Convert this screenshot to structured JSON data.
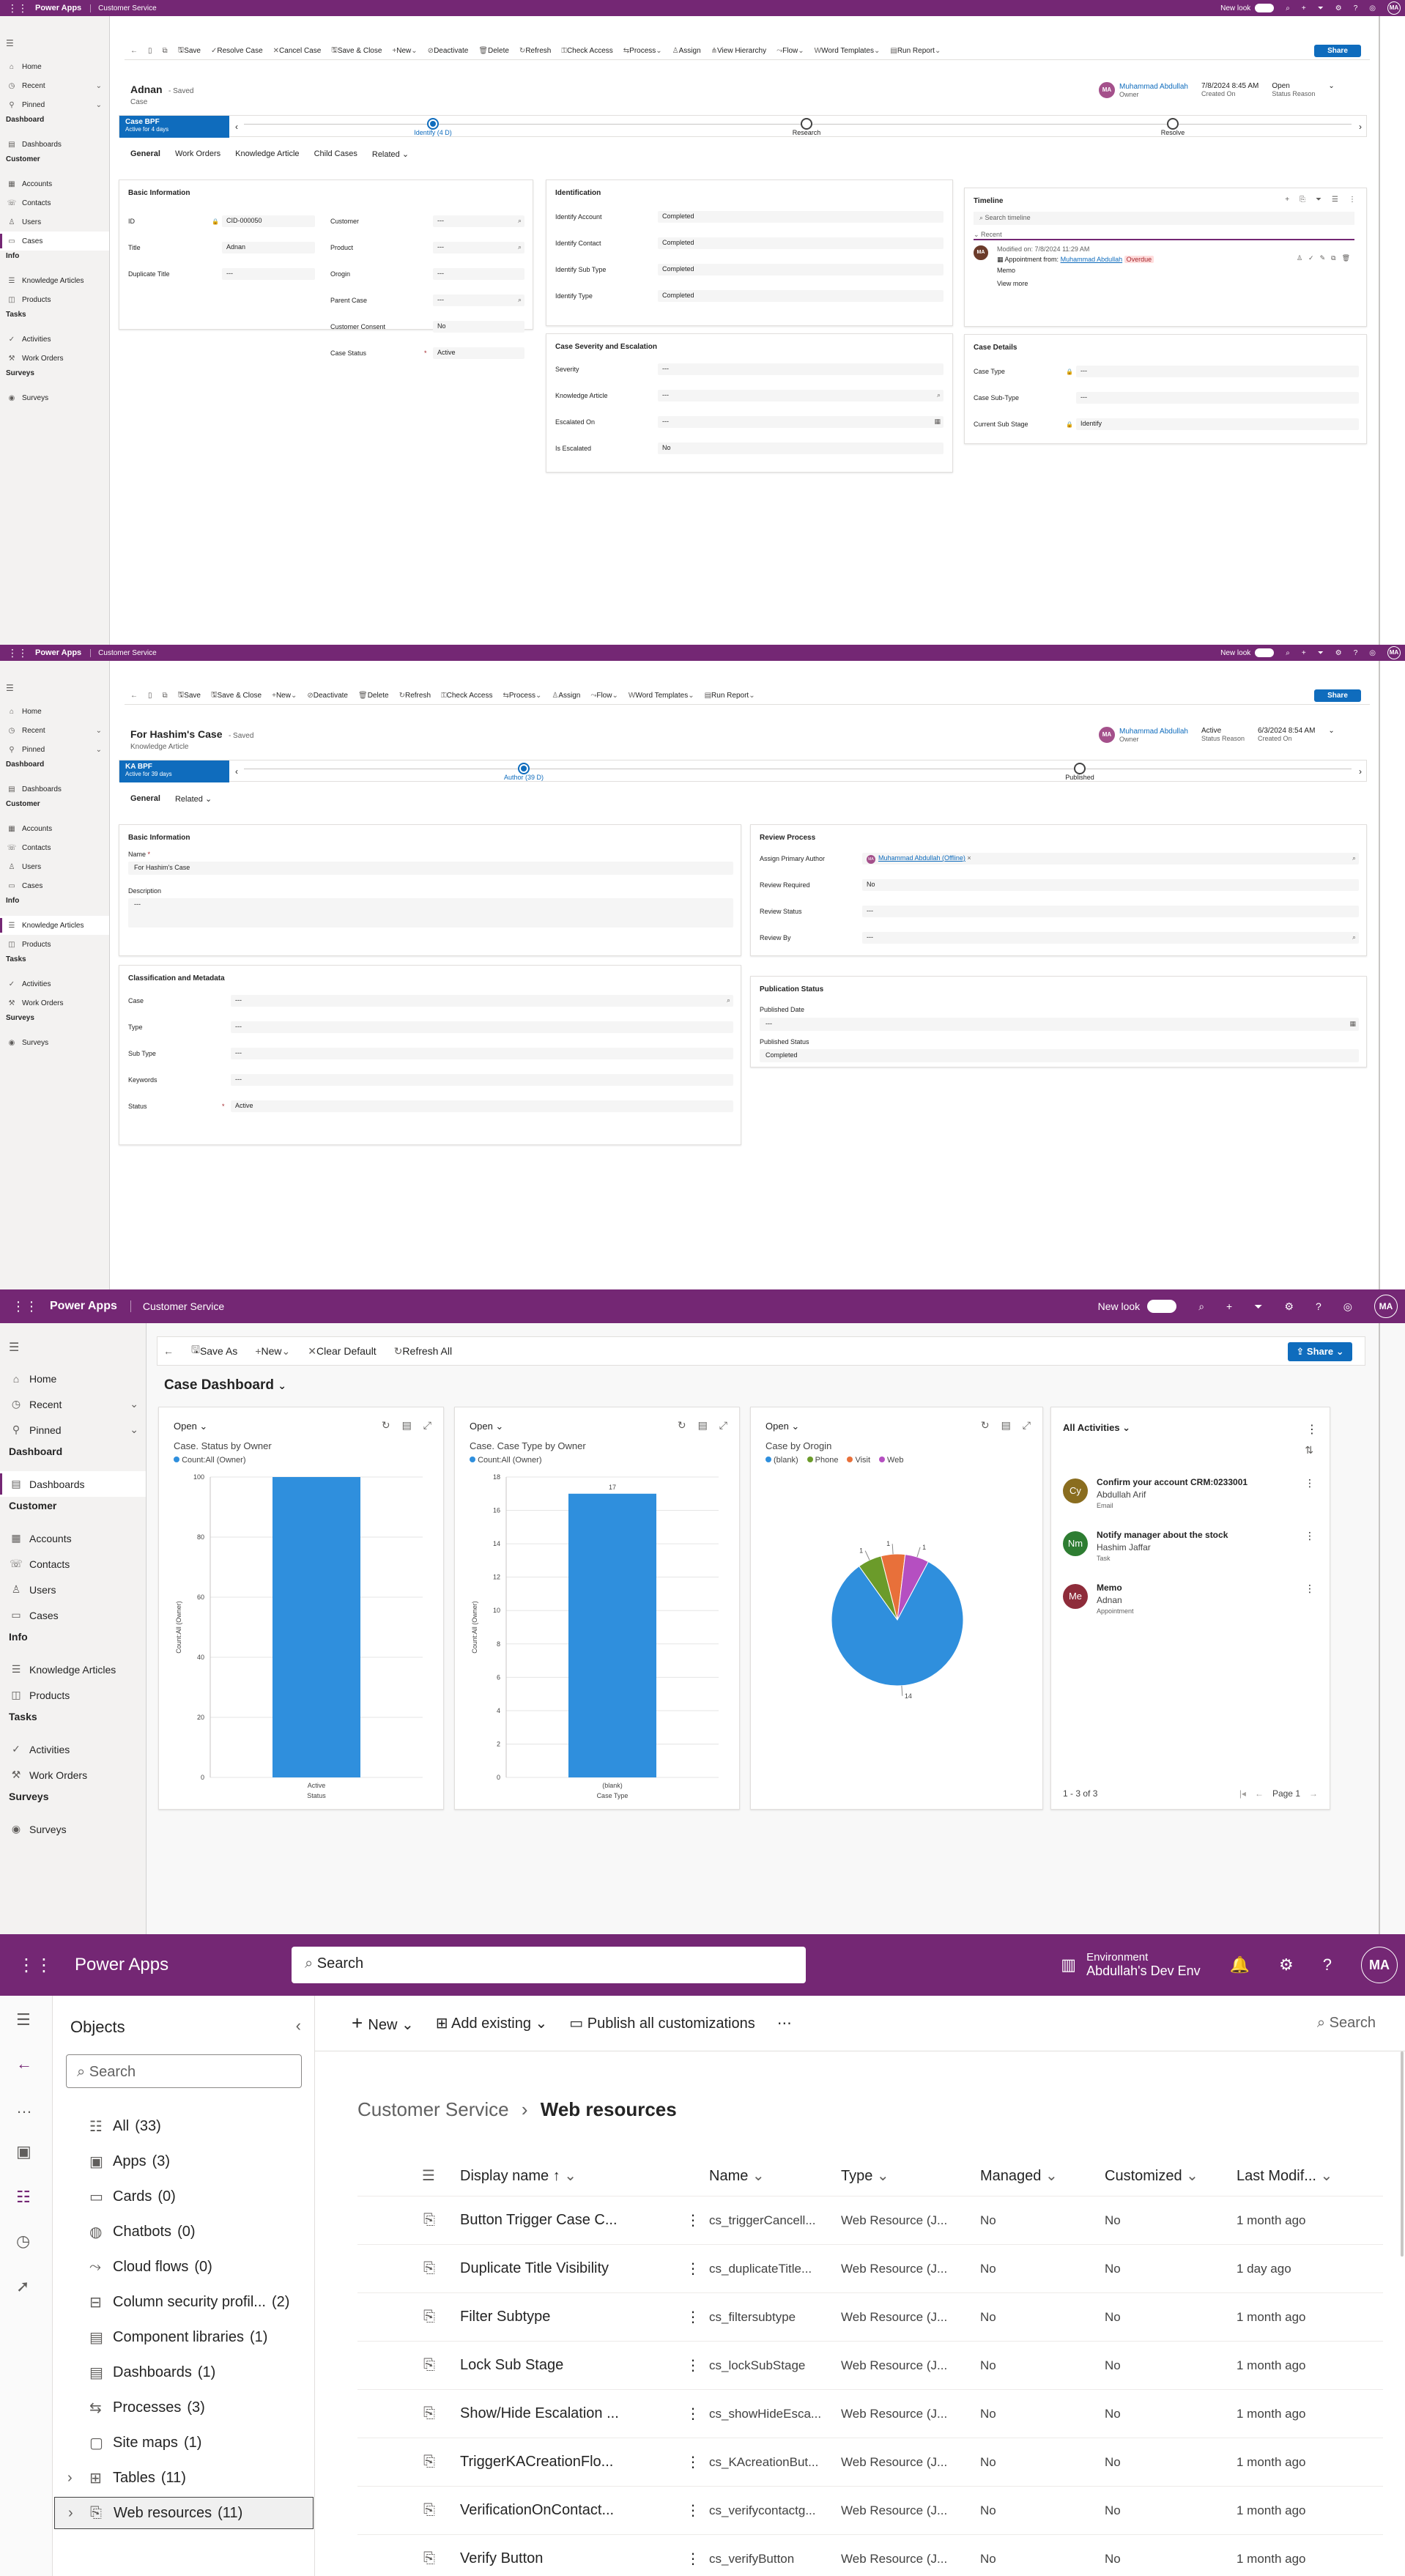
{
  "topbar": {
    "brand": "Power Apps",
    "app": "Customer Service",
    "new_look": "New look",
    "user_initials": "MA"
  },
  "sitemap": {
    "items_top": [
      {
        "icon": "home-icon",
        "label": "Home"
      },
      {
        "icon": "clock-icon",
        "label": "Recent"
      },
      {
        "icon": "pin-icon",
        "label": "Pinned"
      }
    ],
    "groups": [
      {
        "label": "Dashboard",
        "items": [
          {
            "icon": "dashboard-icon",
            "label": "Dashboards"
          }
        ]
      },
      {
        "label": "Customer",
        "items": [
          {
            "icon": "account-icon",
            "label": "Accounts"
          },
          {
            "icon": "contact-icon",
            "label": "Contacts"
          },
          {
            "icon": "user-icon",
            "label": "Users"
          },
          {
            "icon": "case-icon",
            "label": "Cases"
          }
        ]
      },
      {
        "label": "Info",
        "items": [
          {
            "icon": "article-icon",
            "label": "Knowledge Articles"
          },
          {
            "icon": "product-icon",
            "label": "Products"
          }
        ]
      },
      {
        "label": "Tasks",
        "items": [
          {
            "icon": "activity-icon",
            "label": "Activities"
          },
          {
            "icon": "workorder-icon",
            "label": "Work Orders"
          }
        ]
      },
      {
        "label": "Surveys",
        "items": [
          {
            "icon": "survey-icon",
            "label": "Surveys"
          }
        ]
      }
    ]
  },
  "case_form": {
    "commands": [
      "Save",
      "Resolve Case",
      "Cancel Case",
      "Save & Close",
      "New",
      "Deactivate",
      "Delete",
      "Refresh",
      "Check Access",
      "Process",
      "Assign",
      "View Hierarchy",
      "Flow",
      "Word Templates",
      "Run Report"
    ],
    "share": "Share",
    "title": "Adnan",
    "saved": "- Saved",
    "entity": "Case",
    "owner_name": "Muhammad Abdullah",
    "owner_label": "Owner",
    "owner_initials": "MA",
    "created_on": "7/8/2024 8:45 AM",
    "created_label": "Created On",
    "status_reason": "Open",
    "status_label": "Status Reason",
    "bpf_name": "Case BPF",
    "bpf_active": "Active for 4 days",
    "stages": [
      "Identify (4 D)",
      "Research",
      "Resolve"
    ],
    "tabs": [
      "General",
      "Work Orders",
      "Knowledge Article",
      "Child Cases",
      "Related"
    ],
    "basic_title": "Basic Information",
    "basic_left": [
      {
        "label": "ID",
        "value": "CID-000050"
      },
      {
        "label": "Title",
        "value": "Adnan"
      },
      {
        "label": "Duplicate Title",
        "value": "---"
      }
    ],
    "basic_right": [
      {
        "label": "Customer",
        "value": "---"
      },
      {
        "label": "Product",
        "value": "---"
      },
      {
        "label": "Orogin",
        "value": "---"
      },
      {
        "label": "Parent Case",
        "value": "---"
      },
      {
        "label": "Customer Consent",
        "value": "No"
      },
      {
        "label": "Case Status",
        "value": "Active"
      }
    ],
    "ident_title": "Identification",
    "ident": [
      {
        "label": "Identify Account",
        "value": "Completed"
      },
      {
        "label": "Identify Contact",
        "value": "Completed"
      },
      {
        "label": "Identify Sub Type",
        "value": "Completed"
      },
      {
        "label": "Identify Type",
        "value": "Completed"
      }
    ],
    "sev_title": "Case Severity and Escalation",
    "sev": [
      {
        "label": "Severity",
        "value": "---"
      },
      {
        "label": "Knowledge Article",
        "value": "---"
      },
      {
        "label": "Escalated On",
        "value": "---"
      },
      {
        "label": "Is Escalated",
        "value": "No"
      }
    ],
    "timeline_title": "Timeline",
    "timeline_search": "Search timeline",
    "timeline_recent": "Recent",
    "tl_modified": "Modified on: 7/8/2024 11:29 AM",
    "tl_appt": "Appointment from:",
    "tl_person": "Muhammad Abdullah",
    "tl_badge": "Overdue",
    "tl_memo": "Memo",
    "tl_more": "View more",
    "details_title": "Case Details",
    "details": [
      {
        "label": "Case Type",
        "value": "---"
      },
      {
        "label": "Case Sub-Type",
        "value": "---"
      },
      {
        "label": "Current Sub Stage",
        "value": "Identify"
      }
    ]
  },
  "ka_form": {
    "commands": [
      "Save",
      "Save & Close",
      "New",
      "Deactivate",
      "Delete",
      "Refresh",
      "Check Access",
      "Process",
      "Assign",
      "Flow",
      "Word Templates",
      "Run Report"
    ],
    "share": "Share",
    "title": "For Hashim's Case",
    "saved": "- Saved",
    "entity": "Knowledge Article",
    "owner_name": "Muhammad Abdullah",
    "owner_label": "Owner",
    "owner_initials": "MA",
    "status_reason": "Active",
    "status_label": "Status Reason",
    "created_on": "6/3/2024 8:54 AM",
    "created_label": "Created On",
    "bpf_name": "KA BPF",
    "bpf_active": "Active for 39 days",
    "stages": [
      "Author (39 D)",
      "Published"
    ],
    "tabs": [
      "General",
      "Related"
    ],
    "basic_title": "Basic Information",
    "name_label": "Name",
    "name_value": "For Hashim's Case",
    "desc_label": "Description",
    "desc_value": "---",
    "review_title": "Review Process",
    "review": [
      {
        "label": "Assign Primary Author",
        "value": "Muhammad Abdullah (Offline)"
      },
      {
        "label": "Review Required",
        "value": "No"
      },
      {
        "label": "Review Status",
        "value": "---"
      },
      {
        "label": "Review By",
        "value": "---"
      }
    ],
    "class_title": "Classification and Metadata",
    "class": [
      {
        "label": "Case",
        "value": "---"
      },
      {
        "label": "Type",
        "value": "---"
      },
      {
        "label": "Sub Type",
        "value": "---"
      },
      {
        "label": "Keywords",
        "value": "---"
      },
      {
        "label": "Status",
        "value": "Active"
      }
    ],
    "pub_title": "Publication Status",
    "pub": [
      {
        "label": "Published Date",
        "value": "---"
      },
      {
        "label": "Published Status",
        "value": "Completed"
      }
    ]
  },
  "dashboard": {
    "commands": [
      "Save As",
      "New",
      "Clear Default",
      "Refresh All"
    ],
    "share": "Share",
    "title": "Case Dashboard",
    "view": "Open",
    "chart1": {
      "title": "Case. Status by Owner",
      "legend": "Count:All (Owner)",
      "ylabel": "Count:All (Owner)",
      "xlabel": "Status",
      "cat": "Active",
      "ticks": [
        "100",
        "80",
        "60",
        "40",
        "20",
        "0"
      ]
    },
    "chart2": {
      "title": "Case. Case Type by Owner",
      "legend": "Count:All (Owner)",
      "ylabel": "Count:All (Owner)",
      "xlabel": "Case Type",
      "cat": "(blank)",
      "label": "17",
      "ticks": [
        "18",
        "16",
        "14",
        "12",
        "10",
        "8",
        "6",
        "4",
        "2",
        "0"
      ]
    },
    "chart3": {
      "title": "Case by Orogin",
      "legend": [
        "(blank)",
        "Phone",
        "Visit",
        "Web"
      ],
      "labels": [
        "14",
        "1",
        "1",
        "1"
      ]
    },
    "activities": {
      "title": "All Activities",
      "items": [
        {
          "initials": "Cy",
          "title": "Confirm your account CRM:0233001",
          "sub": "Abdullah Arif",
          "type": "Email",
          "color": "#8a6d1f"
        },
        {
          "initials": "Nm",
          "title": "Notify manager about the stock",
          "sub": "Hashim Jaffar",
          "type": "Task",
          "color": "#2e7d32"
        },
        {
          "initials": "Me",
          "title": "Memo",
          "sub": "Adnan",
          "type": "Appointment",
          "color": "#8e2c3a"
        }
      ],
      "footer": "1 - 3 of 3",
      "page": "Page 1"
    }
  },
  "chart_data": [
    {
      "type": "bar",
      "title": "Case. Status by Owner",
      "categories": [
        "Active"
      ],
      "series": [
        {
          "name": "Count:All (Owner)",
          "values": [
            100
          ]
        }
      ],
      "xlabel": "Status",
      "ylabel": "Count:All (Owner)",
      "ylim": [
        0,
        100
      ]
    },
    {
      "type": "bar",
      "title": "Case. Case Type by Owner",
      "categories": [
        "(blank)"
      ],
      "series": [
        {
          "name": "Count:All (Owner)",
          "values": [
            17
          ]
        }
      ],
      "xlabel": "Case Type",
      "ylabel": "Count:All (Owner)",
      "ylim": [
        0,
        18
      ]
    },
    {
      "type": "pie",
      "title": "Case by Orogin",
      "categories": [
        "(blank)",
        "Phone",
        "Visit",
        "Web"
      ],
      "values": [
        14,
        1,
        1,
        1
      ],
      "colors": [
        "#2f8fdd",
        "#6b9b2a",
        "#e8703a",
        "#b54fc1"
      ]
    }
  ],
  "maker": {
    "brand": "Power Apps",
    "search": "Search",
    "env_label": "Environment",
    "env_name": "Abdullah's Dev Env",
    "user_initials": "MA",
    "objects_title": "Objects",
    "objects_search": "Search",
    "objects": [
      {
        "icon": "all-icon",
        "label": "All",
        "count": "(33)"
      },
      {
        "icon": "apps-icon",
        "label": "Apps",
        "count": "(3)"
      },
      {
        "icon": "cards-icon",
        "label": "Cards",
        "count": "(0)"
      },
      {
        "icon": "chatbot-icon",
        "label": "Chatbots",
        "count": "(0)"
      },
      {
        "icon": "flow-icon",
        "label": "Cloud flows",
        "count": "(0)"
      },
      {
        "icon": "security-icon",
        "label": "Column security profil...",
        "count": "(2)"
      },
      {
        "icon": "library-icon",
        "label": "Component libraries",
        "count": "(1)"
      },
      {
        "icon": "dashboard-icon",
        "label": "Dashboards",
        "count": "(1)"
      },
      {
        "icon": "process-icon",
        "label": "Processes",
        "count": "(3)"
      },
      {
        "icon": "sitemap-icon",
        "label": "Site maps",
        "count": "(1)"
      },
      {
        "icon": "table-icon",
        "label": "Tables",
        "count": "(11)"
      },
      {
        "icon": "webres-icon",
        "label": "Web resources",
        "count": "(11)"
      }
    ],
    "toolbar": {
      "new": "New",
      "add": "Add existing",
      "publish": "Publish all customizations",
      "search": "Search"
    },
    "breadcrumb_root": "Customer Service",
    "breadcrumb_page": "Web resources",
    "columns": [
      "Display name ↑",
      "Name",
      "Type",
      "Managed",
      "Customized",
      "Last Modif..."
    ],
    "rows": [
      {
        "display": "Button Trigger Case C...",
        "name": "cs_triggerCancell...",
        "type": "Web Resource (J...",
        "managed": "No",
        "customized": "No",
        "modified": "1 month ago"
      },
      {
        "display": "Duplicate Title Visibility",
        "name": "cs_duplicateTitle...",
        "type": "Web Resource (J...",
        "managed": "No",
        "customized": "No",
        "modified": "1 day ago"
      },
      {
        "display": "Filter Subtype",
        "name": "cs_filtersubtype",
        "type": "Web Resource (J...",
        "managed": "No",
        "customized": "No",
        "modified": "1 month ago"
      },
      {
        "display": "Lock Sub Stage",
        "name": "cs_lockSubStage",
        "type": "Web Resource (J...",
        "managed": "No",
        "customized": "No",
        "modified": "1 month ago"
      },
      {
        "display": "Show/Hide Escalation ...",
        "name": "cs_showHideEsca...",
        "type": "Web Resource (J...",
        "managed": "No",
        "customized": "No",
        "modified": "1 month ago"
      },
      {
        "display": "TriggerKACreationFlo...",
        "name": "cs_KAcreationBut...",
        "type": "Web Resource (J...",
        "managed": "No",
        "customized": "No",
        "modified": "1 month ago"
      },
      {
        "display": "VerificationOnContact...",
        "name": "cs_verifycontactg...",
        "type": "Web Resource (J...",
        "managed": "No",
        "customized": "No",
        "modified": "1 month ago"
      },
      {
        "display": "Verify Button",
        "name": "cs_verifyButton",
        "type": "Web Resource (J...",
        "managed": "No",
        "customized": "No",
        "modified": "1 month ago"
      }
    ]
  }
}
